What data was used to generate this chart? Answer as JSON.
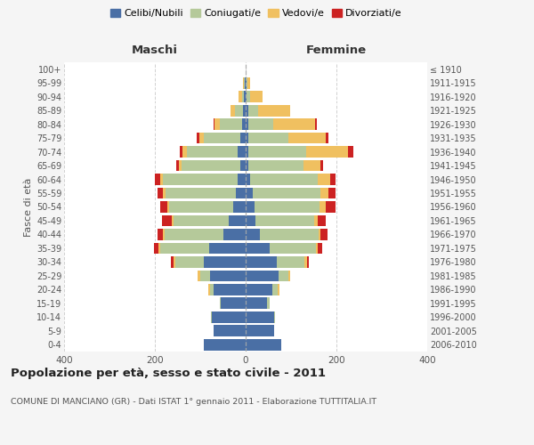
{
  "age_groups": [
    "0-4",
    "5-9",
    "10-14",
    "15-19",
    "20-24",
    "25-29",
    "30-34",
    "35-39",
    "40-44",
    "45-49",
    "50-54",
    "55-59",
    "60-64",
    "65-69",
    "70-74",
    "75-79",
    "80-84",
    "85-89",
    "90-94",
    "95-99",
    "100+"
  ],
  "birth_years": [
    "2006-2010",
    "2001-2005",
    "1996-2000",
    "1991-1995",
    "1986-1990",
    "1981-1985",
    "1976-1980",
    "1971-1975",
    "1966-1970",
    "1961-1965",
    "1956-1960",
    "1951-1955",
    "1946-1950",
    "1941-1945",
    "1936-1940",
    "1931-1935",
    "1926-1930",
    "1921-1925",
    "1916-1920",
    "1911-1915",
    "≤ 1910"
  ],
  "maschi": {
    "celibi": [
      92,
      70,
      75,
      55,
      70,
      78,
      92,
      80,
      50,
      38,
      28,
      22,
      18,
      12,
      18,
      12,
      8,
      5,
      3,
      2,
      0
    ],
    "coniugati": [
      0,
      0,
      2,
      2,
      8,
      22,
      62,
      108,
      128,
      120,
      140,
      155,
      165,
      130,
      112,
      80,
      48,
      18,
      5,
      2,
      0
    ],
    "vedovi": [
      0,
      0,
      0,
      0,
      5,
      5,
      5,
      5,
      5,
      5,
      5,
      5,
      5,
      5,
      10,
      10,
      12,
      10,
      8,
      2,
      0
    ],
    "divorziati": [
      0,
      0,
      0,
      0,
      0,
      0,
      5,
      8,
      12,
      22,
      15,
      12,
      12,
      5,
      5,
      5,
      2,
      0,
      0,
      0,
      0
    ]
  },
  "femmine": {
    "nubili": [
      78,
      62,
      62,
      48,
      58,
      72,
      68,
      52,
      32,
      22,
      20,
      15,
      10,
      5,
      5,
      5,
      5,
      5,
      2,
      2,
      0
    ],
    "coniugate": [
      0,
      0,
      2,
      5,
      12,
      22,
      62,
      102,
      128,
      128,
      142,
      150,
      148,
      122,
      128,
      90,
      55,
      22,
      8,
      2,
      0
    ],
    "vedove": [
      0,
      0,
      0,
      0,
      5,
      5,
      5,
      5,
      5,
      8,
      15,
      18,
      28,
      38,
      92,
      82,
      92,
      72,
      28,
      5,
      0
    ],
    "divorziate": [
      0,
      0,
      0,
      0,
      0,
      0,
      5,
      10,
      15,
      18,
      22,
      15,
      12,
      5,
      12,
      5,
      5,
      0,
      0,
      0,
      0
    ]
  },
  "colors": {
    "celibi": "#4a6fa5",
    "coniugati": "#b5c99a",
    "vedovi": "#f0c060",
    "divorziati": "#cc2222"
  },
  "xlim": 400,
  "title": "Popolazione per età, sesso e stato civile - 2011",
  "subtitle": "COMUNE DI MANCIANO (GR) - Dati ISTAT 1° gennaio 2011 - Elaborazione TUTTITALIA.IT",
  "xlabel_left": "Maschi",
  "xlabel_right": "Femmine",
  "ylabel_left": "Fasce di età",
  "legend_labels": [
    "Celibi/Nubili",
    "Coniugati/e",
    "Vedovi/e",
    "Divorziati/e"
  ],
  "bg_color": "#f5f5f5",
  "plot_bg": "#ffffff",
  "grid_color": "#cccccc",
  "text_color": "#555555"
}
